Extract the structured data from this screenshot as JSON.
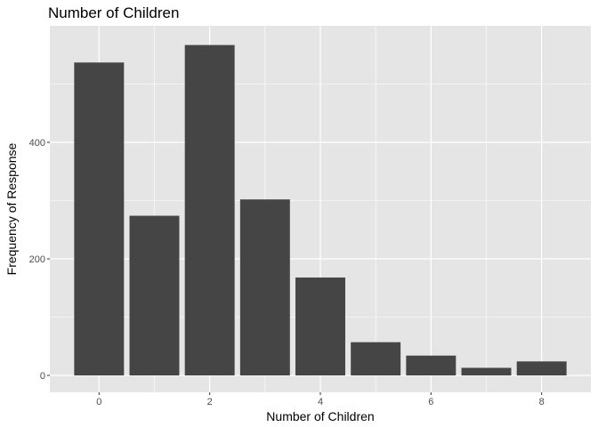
{
  "chart_data": {
    "type": "bar",
    "title": "Number of Children",
    "xlabel": "Number of Children",
    "ylabel": "Frequency of Response",
    "x": [
      0,
      1,
      2,
      3,
      4,
      5,
      6,
      7,
      8
    ],
    "values": [
      537,
      274,
      567,
      302,
      168,
      57,
      34,
      13,
      24
    ],
    "xlim": [
      -0.89,
      8.89
    ],
    "ylim": [
      -29,
      600
    ],
    "x_ticks": [
      0,
      2,
      4,
      6,
      8
    ],
    "y_ticks": [
      0,
      200,
      400
    ],
    "grid": true,
    "legend": "none",
    "colors": {
      "panel_background": "#e5e5e5",
      "grid_major": "#ffffff",
      "bar_fill": "#454545",
      "tick_text": "#4d4d4d"
    }
  }
}
